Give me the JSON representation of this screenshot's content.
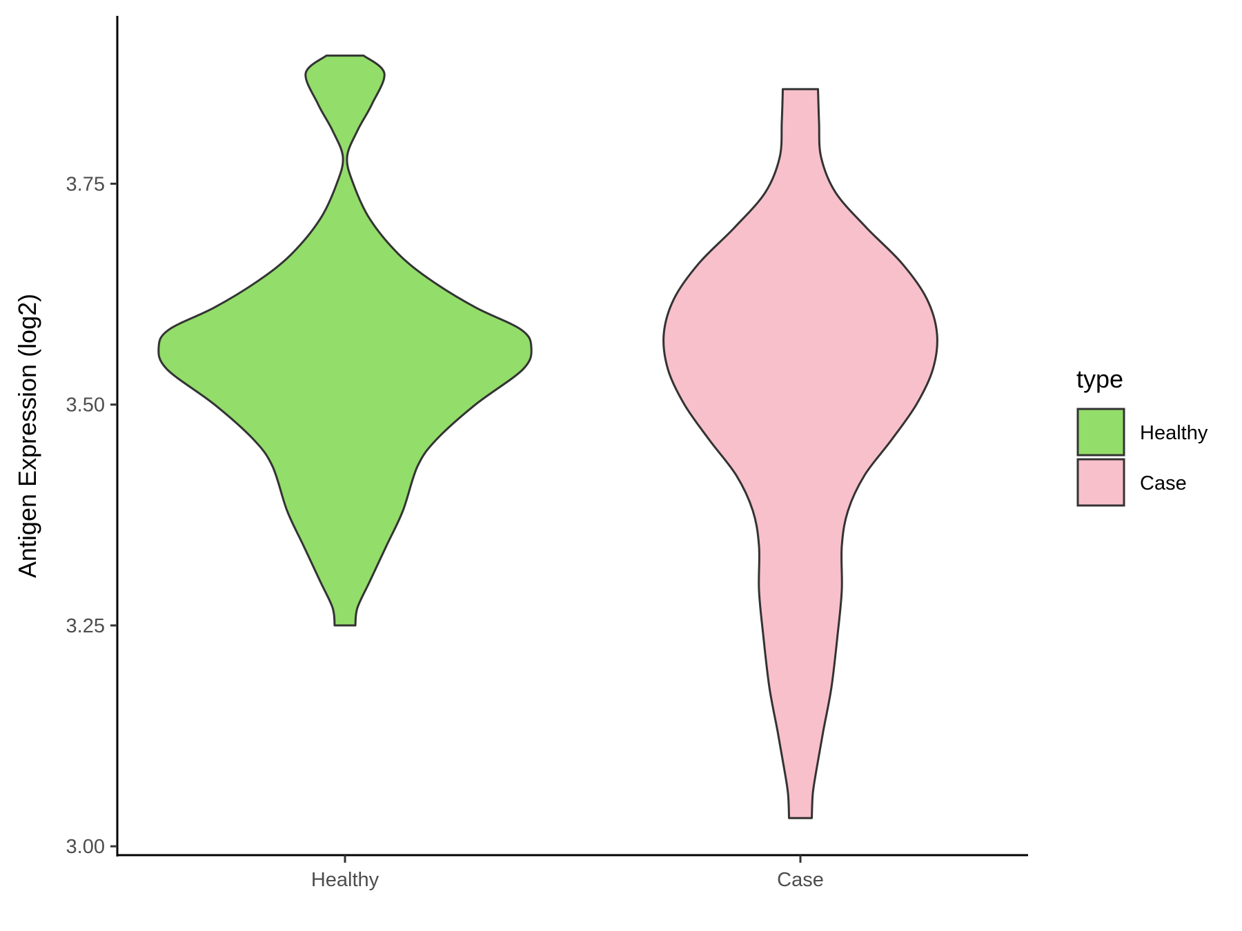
{
  "chart_data": {
    "type": "violin",
    "title": "",
    "xlabel": "",
    "ylabel": "Antigen Expression (log2)",
    "categories": [
      "Healthy",
      "Case"
    ],
    "ylim": [
      2.99,
      3.94
    ],
    "yticks": [
      {
        "value": 3.0,
        "label": "3.00"
      },
      {
        "value": 3.25,
        "label": "3.25"
      },
      {
        "value": 3.5,
        "label": "3.50"
      },
      {
        "value": 3.75,
        "label": "3.75"
      }
    ],
    "grid": false,
    "legend": {
      "title": "type",
      "position": "right",
      "entries": [
        {
          "label": "Healthy",
          "color": "#93dd6a"
        },
        {
          "label": "Case",
          "color": "#f8c0cb"
        }
      ]
    },
    "series": [
      {
        "category": "Healthy",
        "color": "#93dd6a",
        "min": 3.25,
        "max": 3.895,
        "profile": [
          {
            "y": 3.25,
            "hw": 0.05
          },
          {
            "y": 3.27,
            "hw": 0.06
          },
          {
            "y": 3.3,
            "hw": 0.12
          },
          {
            "y": 3.34,
            "hw": 0.2
          },
          {
            "y": 3.38,
            "hw": 0.28
          },
          {
            "y": 3.43,
            "hw": 0.35
          },
          {
            "y": 3.46,
            "hw": 0.44
          },
          {
            "y": 3.5,
            "hw": 0.63
          },
          {
            "y": 3.54,
            "hw": 0.86
          },
          {
            "y": 3.565,
            "hw": 0.9
          },
          {
            "y": 3.585,
            "hw": 0.85
          },
          {
            "y": 3.61,
            "hw": 0.63
          },
          {
            "y": 3.64,
            "hw": 0.42
          },
          {
            "y": 3.67,
            "hw": 0.26
          },
          {
            "y": 3.71,
            "hw": 0.12
          },
          {
            "y": 3.75,
            "hw": 0.04
          },
          {
            "y": 3.78,
            "hw": 0.01
          },
          {
            "y": 3.81,
            "hw": 0.06
          },
          {
            "y": 3.84,
            "hw": 0.13
          },
          {
            "y": 3.875,
            "hw": 0.19
          },
          {
            "y": 3.895,
            "hw": 0.09
          }
        ]
      },
      {
        "category": "Case",
        "color": "#f8c0cb",
        "min": 3.032,
        "max": 3.857,
        "profile": [
          {
            "y": 3.032,
            "hw": 0.055
          },
          {
            "y": 3.06,
            "hw": 0.06
          },
          {
            "y": 3.09,
            "hw": 0.08
          },
          {
            "y": 3.13,
            "hw": 0.11
          },
          {
            "y": 3.18,
            "hw": 0.15
          },
          {
            "y": 3.24,
            "hw": 0.18
          },
          {
            "y": 3.29,
            "hw": 0.2
          },
          {
            "y": 3.34,
            "hw": 0.2
          },
          {
            "y": 3.38,
            "hw": 0.23
          },
          {
            "y": 3.42,
            "hw": 0.31
          },
          {
            "y": 3.46,
            "hw": 0.44
          },
          {
            "y": 3.5,
            "hw": 0.56
          },
          {
            "y": 3.54,
            "hw": 0.64
          },
          {
            "y": 3.58,
            "hw": 0.66
          },
          {
            "y": 3.62,
            "hw": 0.61
          },
          {
            "y": 3.66,
            "hw": 0.49
          },
          {
            "y": 3.7,
            "hw": 0.32
          },
          {
            "y": 3.74,
            "hw": 0.17
          },
          {
            "y": 3.78,
            "hw": 0.1
          },
          {
            "y": 3.82,
            "hw": 0.09
          },
          {
            "y": 3.857,
            "hw": 0.085
          }
        ]
      }
    ]
  }
}
